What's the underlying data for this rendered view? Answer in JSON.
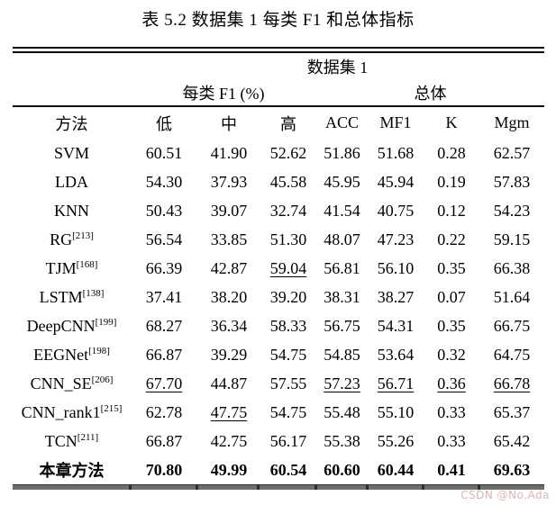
{
  "title": "表 5.2  数据集 1 每类 F1 和总体指标",
  "table": {
    "group_header": "数据集 1",
    "span_headers": {
      "per_class": "每类 F1 (%)",
      "overall": "总体"
    },
    "columns": [
      "方法",
      "低",
      "中",
      "高",
      "ACC",
      "MF1",
      "K",
      "Mgm"
    ],
    "rows": [
      {
        "method": "SVM",
        "ref": "",
        "bold": false,
        "underline": [],
        "values": [
          "60.51",
          "41.90",
          "52.62",
          "51.86",
          "51.68",
          "0.28",
          "62.57"
        ]
      },
      {
        "method": "LDA",
        "ref": "",
        "bold": false,
        "underline": [],
        "values": [
          "54.30",
          "37.93",
          "45.58",
          "45.95",
          "45.94",
          "0.19",
          "57.83"
        ]
      },
      {
        "method": "KNN",
        "ref": "",
        "bold": false,
        "underline": [],
        "values": [
          "50.43",
          "39.07",
          "32.74",
          "41.54",
          "40.75",
          "0.12",
          "54.23"
        ]
      },
      {
        "method": "RG",
        "ref": "[213]",
        "bold": false,
        "underline": [],
        "values": [
          "56.54",
          "33.85",
          "51.30",
          "48.07",
          "47.23",
          "0.22",
          "59.15"
        ]
      },
      {
        "method": "TJM",
        "ref": "[168]",
        "bold": false,
        "underline": [
          2
        ],
        "values": [
          "66.39",
          "42.87",
          "59.04",
          "56.81",
          "56.10",
          "0.35",
          "66.38"
        ]
      },
      {
        "method": "LSTM",
        "ref": "[138]",
        "bold": false,
        "underline": [],
        "values": [
          "37.41",
          "38.20",
          "39.20",
          "38.31",
          "38.27",
          "0.07",
          "51.64"
        ]
      },
      {
        "method": "DeepCNN",
        "ref": "[199]",
        "bold": false,
        "underline": [],
        "values": [
          "68.27",
          "36.34",
          "58.33",
          "56.75",
          "54.31",
          "0.35",
          "66.75"
        ]
      },
      {
        "method": "EEGNet",
        "ref": "[198]",
        "bold": false,
        "underline": [],
        "values": [
          "66.87",
          "39.29",
          "54.75",
          "54.85",
          "53.64",
          "0.32",
          "64.75"
        ]
      },
      {
        "method": "CNN_SE",
        "ref": "[206]",
        "bold": false,
        "underline": [
          0,
          3,
          4,
          5,
          6
        ],
        "values": [
          "67.70",
          "44.87",
          "57.55",
          "57.23",
          "56.71",
          "0.36",
          "66.78"
        ]
      },
      {
        "method": "CNN_rank1",
        "ref": "[215]",
        "bold": false,
        "underline": [
          1
        ],
        "values": [
          "62.78",
          "47.75",
          "54.75",
          "55.48",
          "55.10",
          "0.33",
          "65.37"
        ]
      },
      {
        "method": "TCN",
        "ref": "[211]",
        "bold": false,
        "underline": [],
        "values": [
          "66.87",
          "42.75",
          "56.17",
          "55.38",
          "55.26",
          "0.33",
          "65.42"
        ]
      },
      {
        "method": "本章方法",
        "ref": "",
        "bold": true,
        "underline": [],
        "values": [
          "70.80",
          "49.99",
          "60.54",
          "60.60",
          "60.44",
          "0.41",
          "69.63"
        ]
      }
    ]
  },
  "watermark": {
    "text": "CSDN @No.Ada",
    "color": "#d9b6b6"
  }
}
